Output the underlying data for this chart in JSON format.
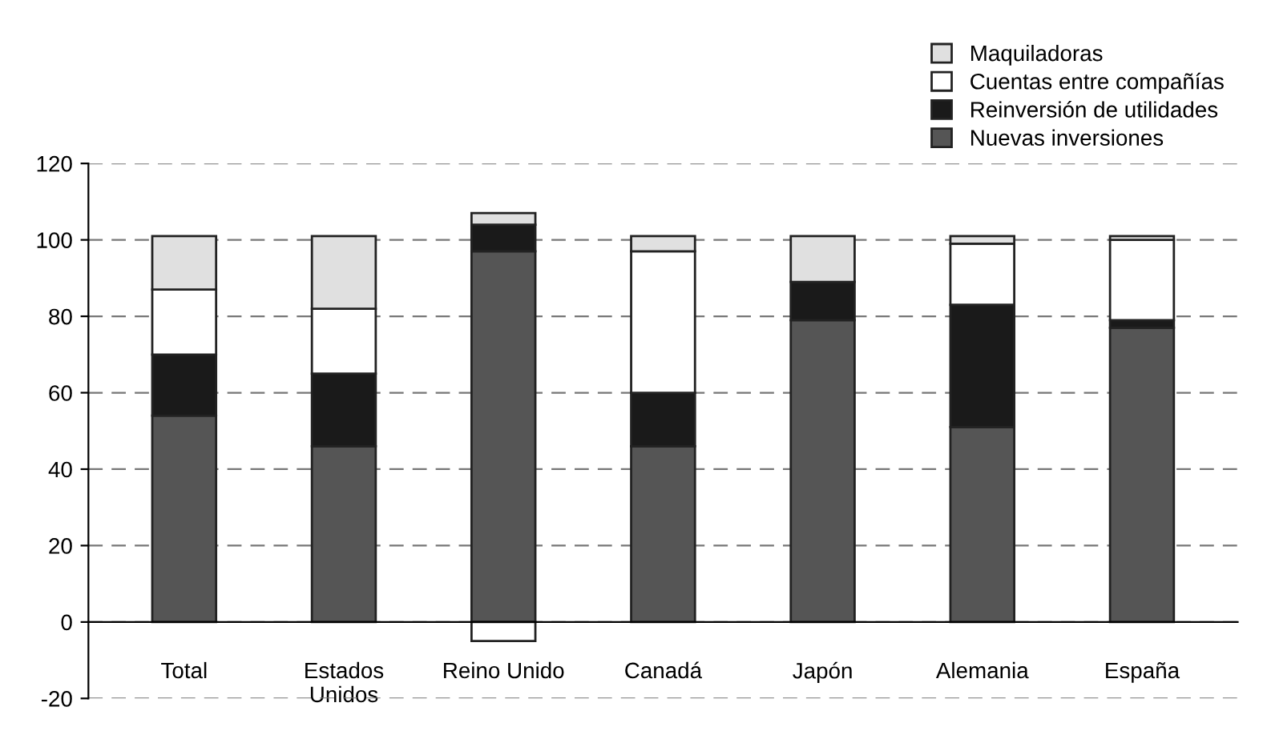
{
  "chart_data": {
    "type": "bar",
    "stacked": true,
    "categories": [
      "Total",
      "Estados\nUnidos",
      "Reino Unido",
      "Canadá",
      "Japón",
      "Alemania",
      "España"
    ],
    "series": [
      {
        "name": "Nuevas inversiones",
        "color": "#555555",
        "values": [
          54,
          46,
          97,
          46,
          79,
          51,
          77
        ]
      },
      {
        "name": "Reinversión de utilidades",
        "color": "#1a1a1a",
        "values": [
          16,
          19,
          7,
          14,
          10,
          32,
          2
        ]
      },
      {
        "name": "Cuentas entre compañías",
        "color": "#ffffff",
        "values": [
          17,
          17,
          -5,
          37,
          0,
          16,
          21
        ]
      },
      {
        "name": "Maquiladoras",
        "color": "#e0e0e0",
        "values": [
          14,
          19,
          3,
          4,
          12,
          2,
          1
        ]
      }
    ],
    "ylim": [
      -20,
      120
    ],
    "yticks": [
      -20,
      0,
      20,
      40,
      60,
      80,
      100,
      120
    ],
    "grid": "y",
    "legend": "top right"
  }
}
